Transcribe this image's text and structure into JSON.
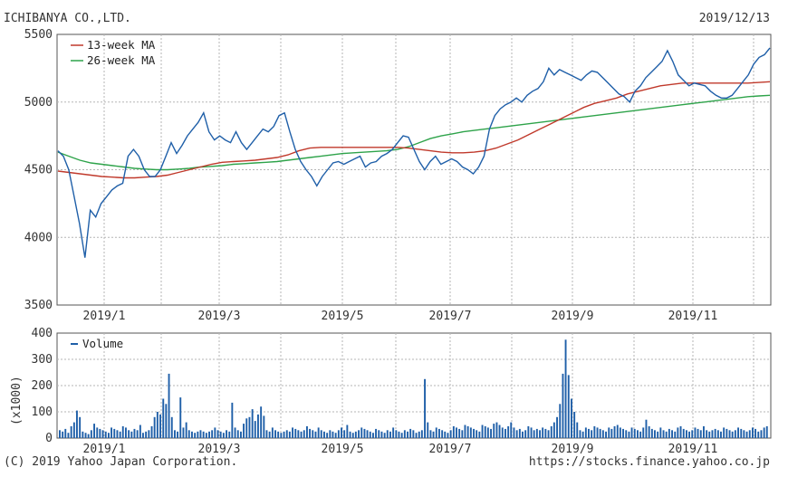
{
  "header": {
    "company": "ICHIBANYA CO.,LTD.",
    "date": "2019/12/13"
  },
  "footer": {
    "copyright": "(C) 2019 Yahoo Japan Corporation.",
    "url": "https://stocks.finance.yahoo.co.jp"
  },
  "colors": {
    "price": "#1f5fa8",
    "ma13": "#c0392b",
    "ma26": "#2ea34a",
    "volume": "#1f5fa8",
    "grid": "#b5b5b5",
    "frame": "#555555"
  },
  "chart_data": [
    {
      "type": "line",
      "title": "",
      "xlabel": "",
      "ylabel": "",
      "ylim": [
        3500,
        5500
      ],
      "y_ticks": [
        "5500",
        "5000",
        "4500",
        "4000",
        "3500"
      ],
      "x_ticks": [
        "2019/1",
        "2019/3",
        "2019/5",
        "2019/7",
        "2019/9",
        "2019/11"
      ],
      "x_tick_week_index": [
        6,
        15,
        24,
        32,
        41,
        50
      ],
      "grid": true,
      "legend_position": "top-left",
      "series": [
        {
          "name": "",
          "values": [
            4640,
            4600,
            4500,
            4300,
            4100,
            3850,
            4200,
            4150,
            4250,
            4300,
            4350,
            4380,
            4400,
            4600,
            4650,
            4600,
            4500,
            4450,
            4450,
            4500,
            4600,
            4700,
            4620,
            4680,
            4750,
            4800,
            4850,
            4920,
            4780,
            4720,
            4750,
            4720,
            4700,
            4780,
            4700,
            4650,
            4700,
            4750,
            4800,
            4780,
            4820,
            4900,
            4920,
            4780,
            4650,
            4560,
            4500,
            4450,
            4380,
            4450,
            4500,
            4550,
            4560,
            4540,
            4560,
            4580,
            4600,
            4520,
            4550,
            4560,
            4600,
            4620,
            4650,
            4700,
            4750,
            4740,
            4650,
            4560,
            4500,
            4560,
            4600,
            4540,
            4560,
            4580,
            4560,
            4520,
            4500,
            4470,
            4520,
            4600,
            4800,
            4900,
            4950,
            4980,
            5000,
            5030,
            5000,
            5050,
            5080,
            5100,
            5150,
            5250,
            5200,
            5240,
            5220,
            5200,
            5180,
            5160,
            5200,
            5230,
            5220,
            5180,
            5140,
            5100,
            5060,
            5040,
            5000,
            5080,
            5120,
            5180,
            5220,
            5260,
            5300,
            5380,
            5300,
            5200,
            5160,
            5120,
            5140,
            5130,
            5120,
            5080,
            5050,
            5030,
            5030,
            5050,
            5100,
            5150,
            5200,
            5280,
            5330,
            5350,
            5400
          ]
        },
        {
          "name": "13-week MA",
          "values": [
            4490,
            4480,
            4470,
            4460,
            4450,
            4445,
            4440,
            4440,
            4445,
            4450,
            4460,
            4480,
            4500,
            4520,
            4540,
            4555,
            4560,
            4565,
            4570,
            4580,
            4590,
            4610,
            4640,
            4660,
            4665,
            4665,
            4665,
            4665,
            4665,
            4665,
            4665,
            4665,
            4660,
            4650,
            4640,
            4630,
            4625,
            4625,
            4630,
            4640,
            4660,
            4690,
            4720,
            4760,
            4800,
            4840,
            4880,
            4920,
            4960,
            4990,
            5010,
            5030,
            5060,
            5080,
            5100,
            5120,
            5130,
            5140,
            5140,
            5140,
            5140,
            5140,
            5140,
            5140,
            5145,
            5150
          ]
        },
        {
          "name": "26-week MA",
          "values": [
            4630,
            4600,
            4570,
            4550,
            4540,
            4530,
            4520,
            4510,
            4505,
            4500,
            4500,
            4505,
            4510,
            4520,
            4525,
            4530,
            4540,
            4545,
            4550,
            4555,
            4560,
            4570,
            4580,
            4590,
            4600,
            4610,
            4620,
            4625,
            4630,
            4635,
            4640,
            4650,
            4670,
            4700,
            4730,
            4750,
            4765,
            4780,
            4790,
            4800,
            4810,
            4820,
            4830,
            4840,
            4850,
            4860,
            4870,
            4880,
            4890,
            4900,
            4910,
            4920,
            4930,
            4940,
            4950,
            4960,
            4970,
            4980,
            4990,
            5000,
            5010,
            5020,
            5030,
            5040,
            5045,
            5050
          ]
        }
      ]
    },
    {
      "type": "bar",
      "title": "",
      "xlabel": "",
      "ylabel": "(x1000)",
      "ylim": [
        0,
        400
      ],
      "y_ticks": [
        "400",
        "300",
        "200",
        "100",
        "0"
      ],
      "x_ticks": [
        "2019/1",
        "2019/3",
        "2019/5",
        "2019/7",
        "2019/9",
        "2019/11"
      ],
      "grid": true,
      "legend_position": "top-left",
      "series": [
        {
          "name": "Volume",
          "values": [
            30,
            25,
            35,
            20,
            45,
            60,
            105,
            80,
            25,
            20,
            15,
            30,
            55,
            40,
            35,
            30,
            25,
            20,
            40,
            35,
            30,
            25,
            45,
            40,
            30,
            25,
            35,
            30,
            50,
            20,
            25,
            30,
            45,
            80,
            100,
            90,
            150,
            130,
            245,
            80,
            30,
            25,
            155,
            40,
            60,
            30,
            25,
            20,
            25,
            30,
            25,
            20,
            25,
            30,
            40,
            30,
            25,
            20,
            30,
            25,
            135,
            40,
            30,
            25,
            55,
            75,
            80,
            110,
            65,
            90,
            120,
            85,
            30,
            25,
            40,
            30,
            25,
            20,
            25,
            30,
            25,
            40,
            35,
            30,
            25,
            30,
            45,
            35,
            30,
            25,
            40,
            30,
            25,
            20,
            30,
            25,
            20,
            30,
            40,
            30,
            50,
            25,
            20,
            25,
            30,
            40,
            35,
            30,
            25,
            20,
            35,
            30,
            25,
            20,
            30,
            25,
            40,
            30,
            25,
            20,
            30,
            25,
            35,
            30,
            20,
            25,
            30,
            225,
            60,
            30,
            25,
            40,
            35,
            30,
            25,
            20,
            30,
            45,
            40,
            35,
            30,
            50,
            45,
            40,
            35,
            30,
            25,
            50,
            45,
            40,
            35,
            55,
            60,
            50,
            40,
            35,
            45,
            60,
            40,
            30,
            35,
            25,
            30,
            45,
            40,
            30,
            35,
            30,
            40,
            35,
            30,
            45,
            60,
            80,
            130,
            245,
            375,
            240,
            150,
            100,
            60,
            30,
            25,
            40,
            35,
            30,
            45,
            40,
            35,
            30,
            25,
            40,
            35,
            45,
            50,
            40,
            35,
            30,
            25,
            40,
            35,
            30,
            25,
            40,
            70,
            45,
            35,
            30,
            25,
            40,
            30,
            25,
            35,
            30,
            25,
            40,
            45,
            35,
            30,
            25,
            30,
            40,
            35,
            30,
            45,
            30,
            25,
            30,
            35,
            30,
            25,
            40,
            35,
            30,
            25,
            30,
            40,
            35,
            30,
            25,
            30,
            40,
            35,
            25,
            30,
            40,
            45
          ]
        }
      ]
    }
  ]
}
